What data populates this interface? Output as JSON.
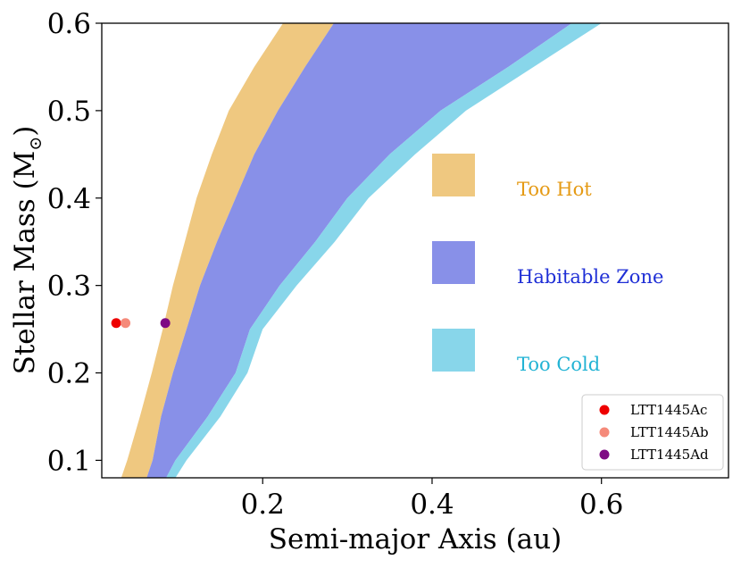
{
  "chart_data": {
    "type": "area",
    "xlabel": "Semi-major Axis (au)",
    "ylabel": "Stellar Mass (M",
    "ylabel_symbol": "⊙",
    "ylabel_close": ")",
    "xlim": [
      0.01,
      0.75
    ],
    "ylim": [
      0.08,
      0.6
    ],
    "xticks": [
      0.2,
      0.4,
      0.6
    ],
    "xtick_labels": [
      "0.2",
      "0.4",
      "0.6"
    ],
    "yticks": [
      0.1,
      0.2,
      0.3,
      0.4,
      0.5,
      0.6
    ],
    "ytick_labels": [
      "0.1",
      "0.2",
      "0.3",
      "0.4",
      "0.5",
      "0.6"
    ],
    "grid": false,
    "series": [
      {
        "name": "Too Hot",
        "color": "#efc880",
        "points": [
          {
            "mass": 0.08,
            "inner": 0.033,
            "outer": 0.063
          },
          {
            "mass": 0.1,
            "inner": 0.04,
            "outer": 0.07
          },
          {
            "mass": 0.15,
            "inner": 0.055,
            "outer": 0.08
          },
          {
            "mass": 0.2,
            "inner": 0.069,
            "outer": 0.094
          },
          {
            "mass": 0.25,
            "inner": 0.082,
            "outer": 0.11
          },
          {
            "mass": 0.3,
            "inner": 0.094,
            "outer": 0.126
          },
          {
            "mass": 0.35,
            "inner": 0.108,
            "outer": 0.146
          },
          {
            "mass": 0.4,
            "inner": 0.122,
            "outer": 0.168
          },
          {
            "mass": 0.45,
            "inner": 0.14,
            "outer": 0.19
          },
          {
            "mass": 0.5,
            "inner": 0.16,
            "outer": 0.218
          },
          {
            "mass": 0.55,
            "inner": 0.19,
            "outer": 0.25
          },
          {
            "mass": 0.6,
            "inner": 0.224,
            "outer": 0.284
          }
        ]
      },
      {
        "name": "Habitable Zone",
        "color": "#8890e8",
        "points": [
          {
            "mass": 0.08,
            "inner": 0.063,
            "outer": 0.086
          },
          {
            "mass": 0.1,
            "inner": 0.07,
            "outer": 0.097
          },
          {
            "mass": 0.15,
            "inner": 0.08,
            "outer": 0.135
          },
          {
            "mass": 0.2,
            "inner": 0.094,
            "outer": 0.168
          },
          {
            "mass": 0.25,
            "inner": 0.11,
            "outer": 0.185
          },
          {
            "mass": 0.3,
            "inner": 0.126,
            "outer": 0.22
          },
          {
            "mass": 0.35,
            "inner": 0.146,
            "outer": 0.262
          },
          {
            "mass": 0.4,
            "inner": 0.168,
            "outer": 0.3
          },
          {
            "mass": 0.45,
            "inner": 0.19,
            "outer": 0.35
          },
          {
            "mass": 0.5,
            "inner": 0.218,
            "outer": 0.41
          },
          {
            "mass": 0.55,
            "inner": 0.25,
            "outer": 0.49
          },
          {
            "mass": 0.6,
            "inner": 0.284,
            "outer": 0.565
          }
        ]
      },
      {
        "name": "Too Cold",
        "color": "#88d6ea",
        "points": [
          {
            "mass": 0.08,
            "inner": 0.086,
            "outer": 0.097
          },
          {
            "mass": 0.1,
            "inner": 0.097,
            "outer": 0.11
          },
          {
            "mass": 0.15,
            "inner": 0.135,
            "outer": 0.15
          },
          {
            "mass": 0.2,
            "inner": 0.168,
            "outer": 0.182
          },
          {
            "mass": 0.25,
            "inner": 0.185,
            "outer": 0.2
          },
          {
            "mass": 0.3,
            "inner": 0.22,
            "outer": 0.24
          },
          {
            "mass": 0.35,
            "inner": 0.262,
            "outer": 0.285
          },
          {
            "mass": 0.4,
            "inner": 0.3,
            "outer": 0.325
          },
          {
            "mass": 0.45,
            "inner": 0.35,
            "outer": 0.38
          },
          {
            "mass": 0.5,
            "inner": 0.41,
            "outer": 0.44
          },
          {
            "mass": 0.55,
            "inner": 0.49,
            "outer": 0.52
          },
          {
            "mass": 0.6,
            "inner": 0.565,
            "outer": 0.6
          }
        ]
      }
    ],
    "zone_legend": [
      {
        "label": "Too Hot",
        "swatch_color": "#efc880",
        "text_color": "#e59a14"
      },
      {
        "label": "Habitable Zone",
        "swatch_color": "#8890e8",
        "text_color": "#1f2fd6"
      },
      {
        "label": "Too Cold",
        "swatch_color": "#88d6ea",
        "text_color": "#22b3d4"
      }
    ],
    "planets": [
      {
        "name": "LTT1445Ac",
        "x": 0.027,
        "y": 0.257,
        "color": "#ee0000"
      },
      {
        "name": "LTT1445Ab",
        "x": 0.038,
        "y": 0.257,
        "color": "#f58a7a"
      },
      {
        "name": "LTT1445Ad",
        "x": 0.085,
        "y": 0.257,
        "color": "#7e0a84"
      }
    ],
    "legend_position": "lower-right"
  }
}
